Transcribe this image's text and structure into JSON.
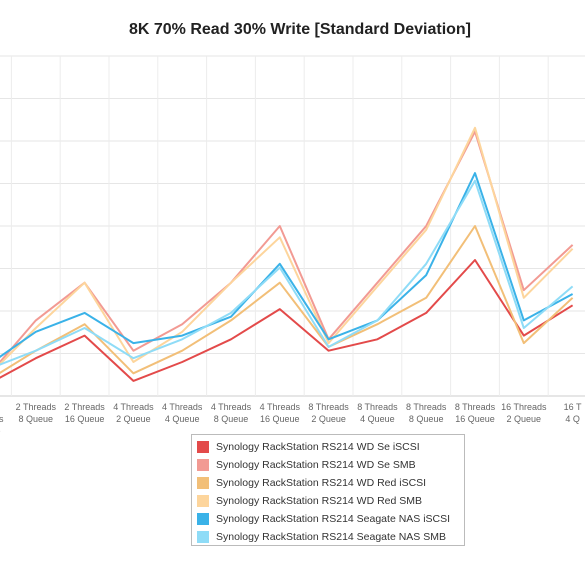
{
  "chart_data": {
    "type": "line",
    "title": "8K 70% Read 30% Write [Standard Deviation]",
    "xlabel": "",
    "ylabel": "",
    "categories": [
      [
        "",
        "Threads",
        "Queue"
      ],
      [
        "2 Threads",
        "8 Queue"
      ],
      [
        "2 Threads",
        "16 Queue"
      ],
      [
        "4 Threads",
        "2 Queue"
      ],
      [
        "4 Threads",
        "4 Queue"
      ],
      [
        "4 Threads",
        "8 Queue"
      ],
      [
        "4 Threads",
        "16 Queue"
      ],
      [
        "8 Threads",
        "2 Queue"
      ],
      [
        "8 Threads",
        "4 Queue"
      ],
      [
        "8 Threads",
        "8 Queue"
      ],
      [
        "8 Threads",
        "16 Queue"
      ],
      [
        "16 Threads",
        "2 Queue"
      ],
      [
        "16 T",
        "4 Q"
      ]
    ],
    "ylim": [
      0,
      9
    ],
    "grid": true,
    "legend_position": "bottom",
    "series": [
      {
        "name": "Synology RackStation RS214 WD Se iSCSI",
        "color": "#e34a4a",
        "values": [
          0.3,
          1.0,
          1.6,
          0.4,
          0.9,
          1.5,
          2.3,
          1.2,
          1.5,
          2.2,
          3.6,
          1.6,
          2.4
        ]
      },
      {
        "name": "Synology RackStation RS214 WD Se SMB",
        "color": "#f29a93",
        "values": [
          0.5,
          2.0,
          3.0,
          1.2,
          1.9,
          3.0,
          4.5,
          1.5,
          3.0,
          4.5,
          7.0,
          2.8,
          4.0
        ]
      },
      {
        "name": "Synology RackStation RS214 WD Red iSCSI",
        "color": "#f2bf78",
        "values": [
          0.4,
          1.2,
          1.9,
          0.6,
          1.2,
          2.0,
          3.0,
          1.3,
          1.9,
          2.6,
          4.5,
          1.4,
          2.6
        ]
      },
      {
        "name": "Synology RackStation RS214 WD Red SMB",
        "color": "#fdd59c",
        "values": [
          0.5,
          1.8,
          3.0,
          0.9,
          1.7,
          3.0,
          4.2,
          1.4,
          2.9,
          4.4,
          7.1,
          2.6,
          3.9
        ]
      },
      {
        "name": "Synology RackStation RS214 Seagate NAS iSCSI",
        "color": "#3ab2e8",
        "values": [
          0.8,
          1.7,
          2.2,
          1.4,
          1.6,
          2.1,
          3.5,
          1.5,
          2.0,
          3.2,
          5.9,
          2.0,
          2.7
        ]
      },
      {
        "name": "Synology RackStation RS214 Seagate NAS SMB",
        "color": "#8fdcf7",
        "values": [
          0.7,
          1.2,
          1.8,
          1.0,
          1.5,
          2.2,
          3.4,
          1.3,
          2.0,
          3.5,
          5.7,
          1.8,
          2.9
        ]
      }
    ]
  }
}
